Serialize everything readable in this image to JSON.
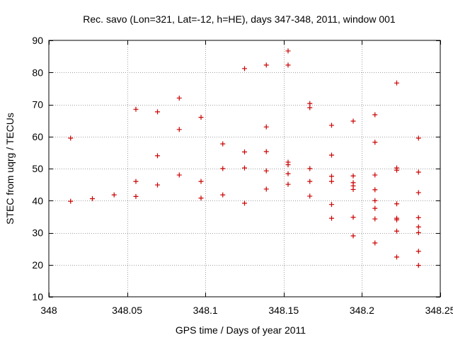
{
  "chart_data": {
    "type": "scatter",
    "title": "Rec. savo (Lon=321, Lat=-12, h=HE), days 347-348, 2011, window 001",
    "xlabel": "GPS time / Days of year 2011",
    "ylabel": "STEC from uqrg / TECUs",
    "xlim": [
      348,
      348.25
    ],
    "ylim": [
      10,
      90
    ],
    "grid": true,
    "marker": "+",
    "marker_color": "#cc0000",
    "x_ticks": [
      348,
      348.05,
      348.1,
      348.15,
      348.2,
      348.25
    ],
    "x_tick_labels": [
      "348",
      "348.05",
      "348.1",
      "348.15",
      "348.2",
      "348.25"
    ],
    "y_ticks": [
      10,
      20,
      30,
      40,
      50,
      60,
      70,
      80,
      90
    ],
    "y_tick_labels": [
      "10",
      "20",
      "30",
      "40",
      "50",
      "60",
      "70",
      "80",
      "90"
    ],
    "series": [
      {
        "name": "STEC",
        "points": [
          [
            348.0139,
            59.5
          ],
          [
            348.0139,
            39.8
          ],
          [
            348.0278,
            40.6
          ],
          [
            348.0417,
            41.8
          ],
          [
            348.0556,
            68.5
          ],
          [
            348.0556,
            46.0
          ],
          [
            348.0556,
            41.3
          ],
          [
            348.0694,
            67.7
          ],
          [
            348.0694,
            54.0
          ],
          [
            348.0694,
            44.9
          ],
          [
            348.0833,
            72.0
          ],
          [
            348.0833,
            62.2
          ],
          [
            348.0833,
            48.0
          ],
          [
            348.0972,
            66.0
          ],
          [
            348.0972,
            46.0
          ],
          [
            348.0972,
            40.8
          ],
          [
            348.1111,
            57.7
          ],
          [
            348.1111,
            50.0
          ],
          [
            348.1111,
            41.8
          ],
          [
            348.125,
            81.2
          ],
          [
            348.125,
            55.2
          ],
          [
            348.125,
            50.2
          ],
          [
            348.125,
            39.2
          ],
          [
            348.1389,
            82.3
          ],
          [
            348.1389,
            63.0
          ],
          [
            348.1389,
            55.3
          ],
          [
            348.1389,
            49.3
          ],
          [
            348.1389,
            43.6
          ],
          [
            348.1528,
            86.7
          ],
          [
            348.1528,
            82.3
          ],
          [
            348.1528,
            52.0
          ],
          [
            348.1528,
            51.2
          ],
          [
            348.1528,
            48.4
          ],
          [
            348.1528,
            45.1
          ],
          [
            348.1667,
            70.3
          ],
          [
            348.1667,
            69.0
          ],
          [
            348.1667,
            50.0
          ],
          [
            348.1667,
            46.0
          ],
          [
            348.1667,
            41.4
          ],
          [
            348.1806,
            63.5
          ],
          [
            348.1806,
            54.2
          ],
          [
            348.1806,
            47.6
          ],
          [
            348.1806,
            46.0
          ],
          [
            348.1806,
            38.8
          ],
          [
            348.1806,
            34.5
          ],
          [
            348.1944,
            64.8
          ],
          [
            348.1944,
            47.7
          ],
          [
            348.1944,
            45.6
          ],
          [
            348.1944,
            44.6
          ],
          [
            348.1944,
            43.5
          ],
          [
            348.1944,
            34.8
          ],
          [
            348.1944,
            29.0
          ],
          [
            348.2083,
            66.8
          ],
          [
            348.2083,
            58.2
          ],
          [
            348.2083,
            48.0
          ],
          [
            348.2083,
            43.4
          ],
          [
            348.2083,
            40.0
          ],
          [
            348.2083,
            37.6
          ],
          [
            348.2083,
            34.3
          ],
          [
            348.2083,
            26.8
          ],
          [
            348.2222,
            76.7
          ],
          [
            348.2222,
            50.2
          ],
          [
            348.2222,
            49.5
          ],
          [
            348.2222,
            39.0
          ],
          [
            348.2222,
            34.5
          ],
          [
            348.2222,
            34.0
          ],
          [
            348.2222,
            30.5
          ],
          [
            348.2222,
            22.4
          ],
          [
            348.2361,
            59.5
          ],
          [
            348.2361,
            48.9
          ],
          [
            348.2361,
            42.5
          ],
          [
            348.2361,
            34.7
          ],
          [
            348.2361,
            31.8
          ],
          [
            348.2361,
            30.0
          ],
          [
            348.2361,
            24.2
          ],
          [
            348.2361,
            19.8
          ]
        ]
      }
    ]
  }
}
